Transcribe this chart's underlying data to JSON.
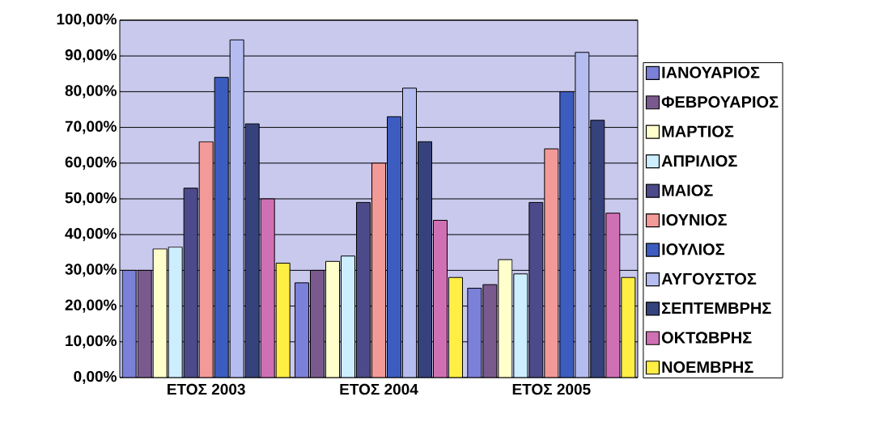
{
  "chart_data": {
    "type": "bar",
    "categories": [
      "ΕΤΟΣ 2003",
      "ΕΤΟΣ 2004",
      "ΕΤΟΣ 2005"
    ],
    "series": [
      {
        "name": "ΙΑΝΟΥΑΡΙΟΣ",
        "color": "#7b80d8",
        "values": [
          30,
          26.5,
          25
        ]
      },
      {
        "name": "ΦΕΒΡΟΥΑΡΙΟΣ",
        "color": "#7a5a8e",
        "values": [
          30,
          30,
          26
        ]
      },
      {
        "name": "ΜΑΡΤΙΟΣ",
        "color": "#ffffcc",
        "values": [
          36,
          32.5,
          33
        ]
      },
      {
        "name": "ΑΠΡΙΛΙΟΣ",
        "color": "#cceeff",
        "values": [
          36.5,
          34,
          29
        ]
      },
      {
        "name": "ΜΑΙΟΣ",
        "color": "#4c4a8a",
        "values": [
          53,
          49,
          49
        ]
      },
      {
        "name": "ΙΟΥΝΙΟΣ",
        "color": "#f29a98",
        "values": [
          66,
          60,
          64
        ]
      },
      {
        "name": "ΙΟΥΛΙΟΣ",
        "color": "#3c5cc0",
        "values": [
          84,
          73,
          80
        ]
      },
      {
        "name": "ΑΥΓΟΥΣΤΟΣ",
        "color": "#b4bcf0",
        "values": [
          94.5,
          81,
          91
        ]
      },
      {
        "name": "ΣΕΠΤΕΜΒΡΗΣ",
        "color": "#36427c",
        "values": [
          71,
          66,
          72
        ]
      },
      {
        "name": "ΟΚΤΩΒΡΗΣ",
        "color": "#d070b4",
        "values": [
          50,
          44,
          46
        ]
      },
      {
        "name": "ΝΟΕΜΒΡΗΣ",
        "color": "#ffee44",
        "values": [
          32,
          28,
          28
        ]
      }
    ],
    "ylim": [
      0,
      100
    ],
    "yticks": [
      {
        "value": 0,
        "label": "0,00%"
      },
      {
        "value": 10,
        "label": "10,00%"
      },
      {
        "value": 20,
        "label": "20,00%"
      },
      {
        "value": 30,
        "label": "30,00%"
      },
      {
        "value": 40,
        "label": "40,00%"
      },
      {
        "value": 50,
        "label": "50,00%"
      },
      {
        "value": 60,
        "label": "60,00%"
      },
      {
        "value": 70,
        "label": "70,00%"
      },
      {
        "value": 80,
        "label": "80,00%"
      },
      {
        "value": 90,
        "label": "90,00%"
      },
      {
        "value": 100,
        "label": "100,00%"
      }
    ],
    "grid": "y",
    "legend": "right"
  }
}
